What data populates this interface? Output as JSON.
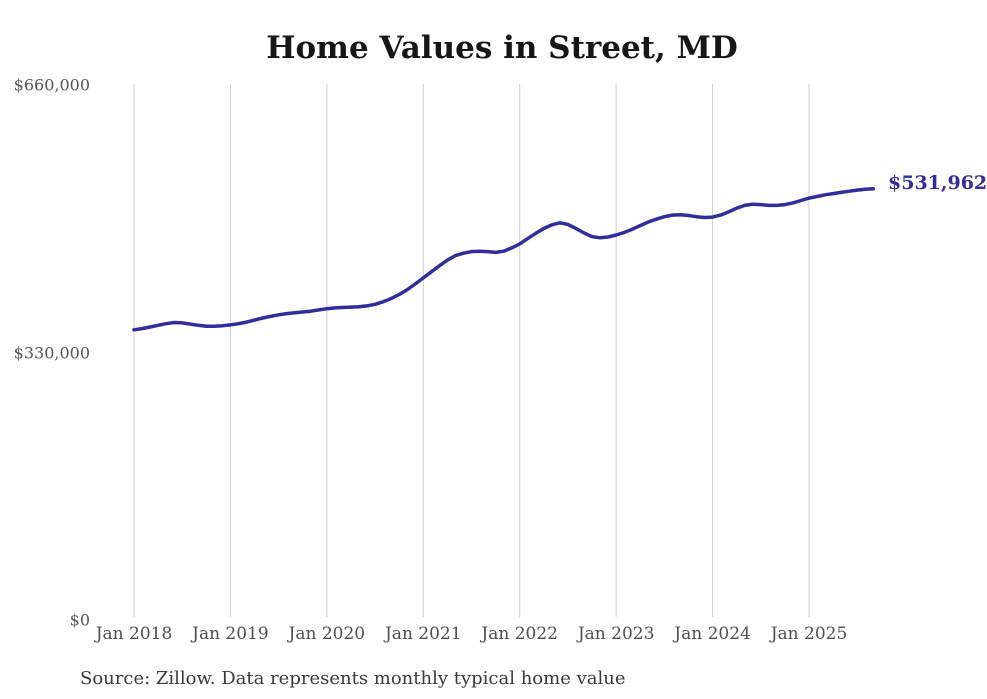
{
  "title": "Home Values in Street, MD",
  "end_label": "$531,962",
  "source_note": "Source: Zillow. Data represents monthly typical home value",
  "colors": {
    "line": "#312e9c",
    "end_label": "#312e9c",
    "gridline": "#cfcfcf",
    "axis_text": "#555555",
    "title_text": "#161616",
    "source_text": "#3a3a3a",
    "background": "#ffffff"
  },
  "chart_data": {
    "type": "line",
    "title": "Home Values in Street, MD",
    "frequency": "monthly",
    "x_start": "Jan 2018",
    "x_end": "Sep 2025",
    "xlabel": "",
    "ylabel": "",
    "ylim": [
      0,
      660000
    ],
    "grid": "vertical-only",
    "legend": "none",
    "y_ticks": [
      {
        "label": "$0",
        "value": 0
      },
      {
        "label": "$330,000",
        "value": 330000
      },
      {
        "label": "$660,000",
        "value": 660000
      }
    ],
    "x_ticks": [
      {
        "label": "Jan 2018",
        "month_index": 0
      },
      {
        "label": "Jan 2019",
        "month_index": 12
      },
      {
        "label": "Jan 2020",
        "month_index": 24
      },
      {
        "label": "Jan 2021",
        "month_index": 36
      },
      {
        "label": "Jan 2022",
        "month_index": 48
      },
      {
        "label": "Jan 2023",
        "month_index": 60
      },
      {
        "label": "Jan 2024",
        "month_index": 72
      },
      {
        "label": "Jan 2025",
        "month_index": 84
      }
    ],
    "end_value": 531962,
    "series": [
      {
        "name": "Monthly typical home value",
        "values": [
          358000,
          359500,
          361500,
          363500,
          365500,
          367000,
          366500,
          365000,
          363500,
          362500,
          362500,
          363000,
          364000,
          365500,
          367500,
          370000,
          372500,
          374500,
          376500,
          378000,
          379000,
          380000,
          381000,
          382500,
          384000,
          385000,
          385500,
          386000,
          386500,
          387500,
          389500,
          392500,
          396500,
          401500,
          407500,
          414500,
          422000,
          429500,
          437000,
          444000,
          449500,
          452500,
          454500,
          455000,
          454500,
          453500,
          455000,
          459000,
          464000,
          470500,
          477000,
          483000,
          487500,
          490000,
          488000,
          483000,
          477500,
          473000,
          471500,
          472500,
          475000,
          478000,
          482000,
          486500,
          491000,
          494500,
          497500,
          499500,
          500000,
          499000,
          497500,
          496500,
          497000,
          499500,
          503500,
          508000,
          511500,
          513000,
          512500,
          511500,
          511500,
          512500,
          514500,
          517500,
          520500,
          522500,
          524500,
          526000,
          527500,
          529000,
          530300,
          531300,
          531962
        ]
      }
    ]
  }
}
